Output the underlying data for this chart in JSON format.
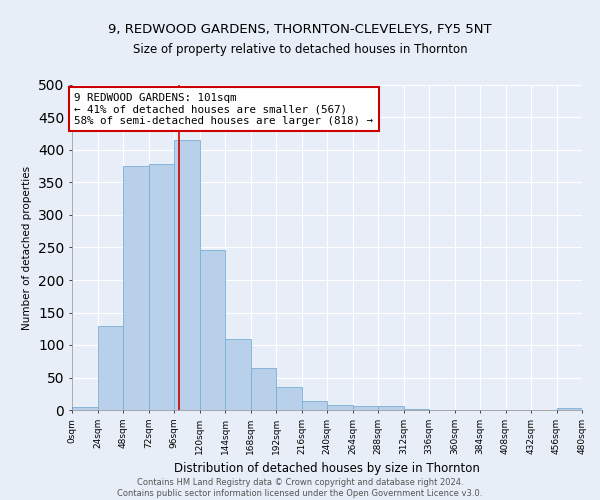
{
  "title1": "9, REDWOOD GARDENS, THORNTON-CLEVELEYS, FY5 5NT",
  "title2": "Size of property relative to detached houses in Thornton",
  "xlabel": "Distribution of detached houses by size in Thornton",
  "ylabel": "Number of detached properties",
  "footnote": "Contains HM Land Registry data © Crown copyright and database right 2024.\nContains public sector information licensed under the Open Government Licence v3.0.",
  "bin_edges": [
    0,
    24,
    48,
    72,
    96,
    120,
    144,
    168,
    192,
    216,
    240,
    264,
    288,
    312,
    336,
    360,
    384,
    408,
    432,
    456,
    480
  ],
  "bar_heights": [
    4,
    130,
    375,
    378,
    415,
    246,
    110,
    65,
    35,
    14,
    8,
    6,
    6,
    2,
    0,
    0,
    0,
    0,
    0,
    3
  ],
  "bar_color": "#b8d0ea",
  "bar_edge_color": "#7aafd4",
  "property_size": 101,
  "vline_color": "#cc0000",
  "annotation_text": "9 REDWOOD GARDENS: 101sqm\n← 41% of detached houses are smaller (567)\n58% of semi-detached houses are larger (818) →",
  "annotation_box_color": "#ffffff",
  "annotation_border_color": "#cc0000",
  "ylim": [
    0,
    500
  ],
  "tick_labels": [
    "0sqm",
    "24sqm",
    "48sqm",
    "72sqm",
    "96sqm",
    "120sqm",
    "144sqm",
    "168sqm",
    "192sqm",
    "216sqm",
    "240sqm",
    "264sqm",
    "288sqm",
    "312sqm",
    "336sqm",
    "360sqm",
    "384sqm",
    "408sqm",
    "432sqm",
    "456sqm",
    "480sqm"
  ],
  "background_color": "#e8eef8",
  "grid_color": "#ffffff",
  "yticks": [
    0,
    50,
    100,
    150,
    200,
    250,
    300,
    350,
    400,
    450,
    500
  ]
}
